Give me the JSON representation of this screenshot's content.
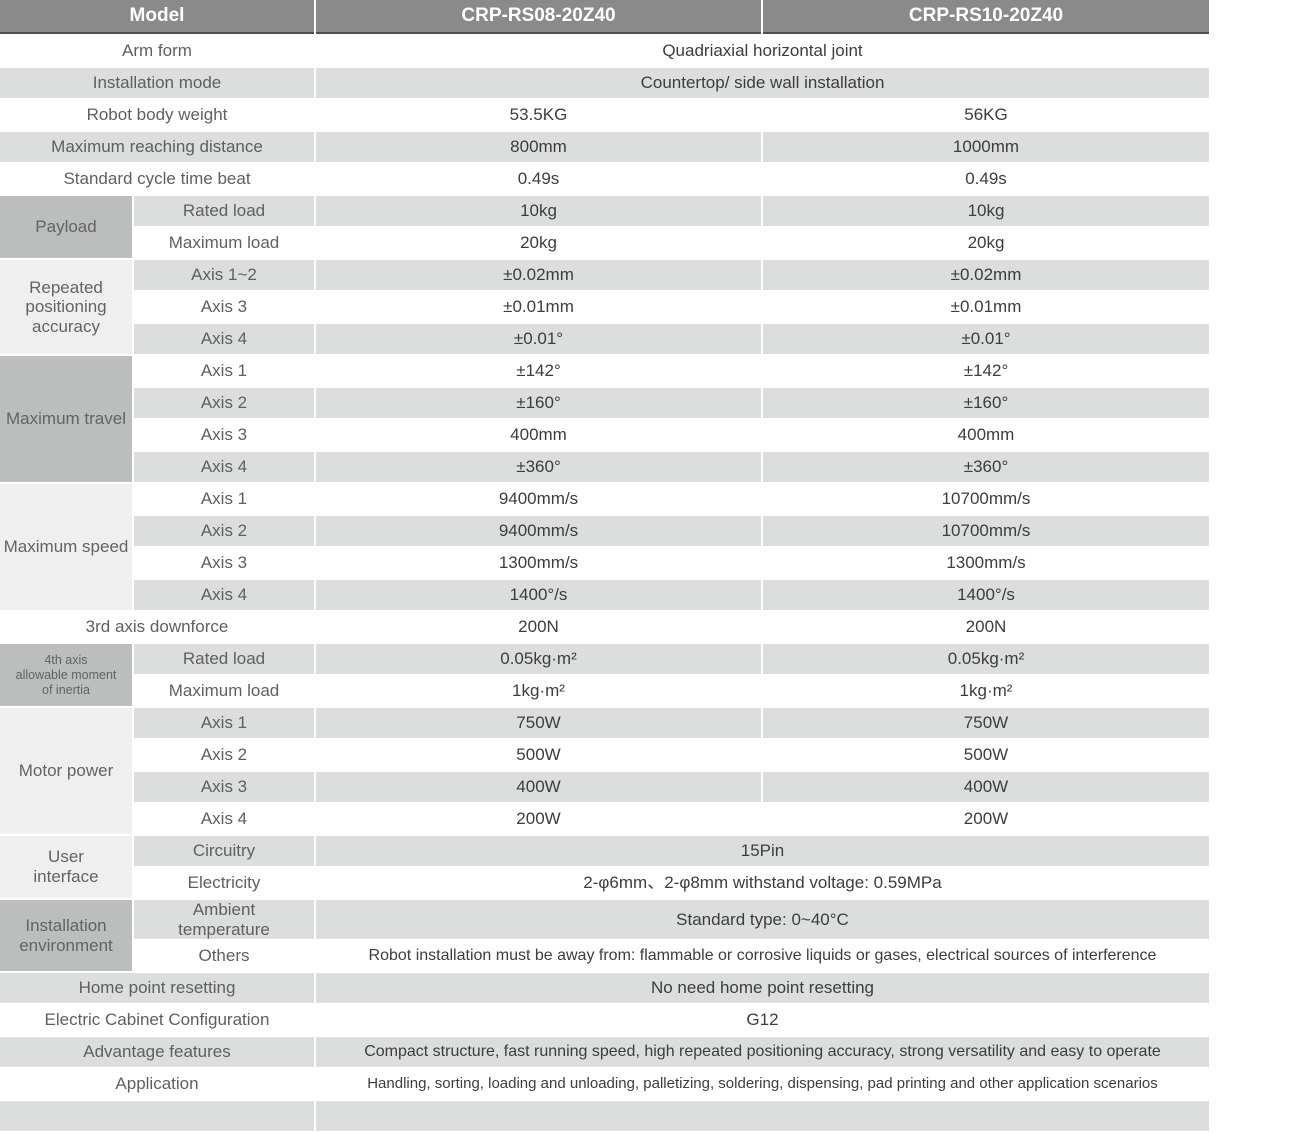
{
  "colors": {
    "header_bg": "#8a8a8a",
    "header_text": "#ffffff",
    "header_underline": "#4f4f4f",
    "stripe_gray": "#dcdddd",
    "group_cell_dark": "#bcbdbd",
    "group_cell_light": "#efefef",
    "label_text": "#5f5f5f",
    "value_text": "#3d3d3d"
  },
  "header": {
    "model_label": "Model",
    "model_a": "CRP-RS08-20Z40",
    "model_b": "CRP-RS10-20Z40"
  },
  "specs": {
    "arm_form": {
      "label": "Arm form",
      "value": "Quadriaxial horizontal joint"
    },
    "installation_mode": {
      "label": "Installation mode",
      "value": "Countertop/ side wall installation"
    },
    "robot_body_weight": {
      "label": "Robot body weight",
      "a": "53.5KG",
      "b": "56KG"
    },
    "max_reach": {
      "label": "Maximum reaching distance",
      "a": "800mm",
      "b": "1000mm"
    },
    "cycle_time": {
      "label": "Standard cycle time beat",
      "a": "0.49s",
      "b": "0.49s"
    },
    "payload": {
      "label": "Payload",
      "rows": [
        {
          "label": "Rated load",
          "a": "10kg",
          "b": "10kg"
        },
        {
          "label": "Maximum load",
          "a": "20kg",
          "b": "20kg"
        }
      ]
    },
    "accuracy": {
      "label": "Repeated\npositioning\naccuracy",
      "rows": [
        {
          "label": "Axis 1~2",
          "a": "±0.02mm",
          "b": "±0.02mm"
        },
        {
          "label": "Axis 3",
          "a": "±0.01mm",
          "b": "±0.01mm"
        },
        {
          "label": "Axis 4",
          "a": "±0.01°",
          "b": "±0.01°"
        }
      ]
    },
    "travel": {
      "label": "Maximum travel",
      "rows": [
        {
          "label": "Axis 1",
          "a": "±142°",
          "b": "±142°"
        },
        {
          "label": "Axis 2",
          "a": "±160°",
          "b": "±160°"
        },
        {
          "label": "Axis 3",
          "a": "400mm",
          "b": "400mm"
        },
        {
          "label": "Axis 4",
          "a": "±360°",
          "b": "±360°"
        }
      ]
    },
    "speed": {
      "label": "Maximum speed",
      "rows": [
        {
          "label": "Axis 1",
          "a": "9400mm/s",
          "b": "10700mm/s"
        },
        {
          "label": "Axis 2",
          "a": "9400mm/s",
          "b": "10700mm/s"
        },
        {
          "label": "Axis 3",
          "a": "1300mm/s",
          "b": "1300mm/s"
        },
        {
          "label": "Axis 4",
          "a": "1400°/s",
          "b": "1400°/s"
        }
      ]
    },
    "downforce": {
      "label": "3rd axis downforce",
      "a": "200N",
      "b": "200N"
    },
    "inertia": {
      "label": "4th axis\nallowable moment\nof inertia",
      "rows": [
        {
          "label": "Rated load",
          "a": "0.05kg·m²",
          "b": "0.05kg·m²"
        },
        {
          "label": "Maximum load",
          "a": "1kg·m²",
          "b": "1kg·m²"
        }
      ]
    },
    "motor_power": {
      "label": "Motor power",
      "rows": [
        {
          "label": "Axis 1",
          "a": "750W",
          "b": "750W"
        },
        {
          "label": "Axis 2",
          "a": "500W",
          "b": "500W"
        },
        {
          "label": "Axis 3",
          "a": "400W",
          "b": "400W"
        },
        {
          "label": "Axis 4",
          "a": "200W",
          "b": "200W"
        }
      ]
    },
    "user_interface": {
      "label": "User\ninterface",
      "rows": [
        {
          "label": "Circuitry",
          "value": "15Pin"
        },
        {
          "label": "Electricity",
          "value": "2-φ6mm、2-φ8mm withstand voltage: 0.59MPa"
        }
      ]
    },
    "environment": {
      "label": "Installation\nenvironment",
      "rows": [
        {
          "label": "Ambient\ntemperature",
          "value": "Standard type:  0~40°C"
        },
        {
          "label": "Others",
          "value": "Robot installation must be away from: flammable or corrosive liquids or gases, electrical sources of interference"
        }
      ]
    },
    "home_reset": {
      "label": "Home point resetting",
      "value": "No need home point resetting"
    },
    "cabinet": {
      "label": "Electric Cabinet Configuration",
      "value": "G12"
    },
    "advantage": {
      "label": "Advantage features",
      "value": "Compact structure, fast running speed, high repeated positioning accuracy, strong versatility and easy to operate"
    },
    "application": {
      "label": "Application",
      "value": "Handling, sorting, loading and unloading, palletizing, soldering, dispensing, pad printing and other application scenarios"
    }
  }
}
